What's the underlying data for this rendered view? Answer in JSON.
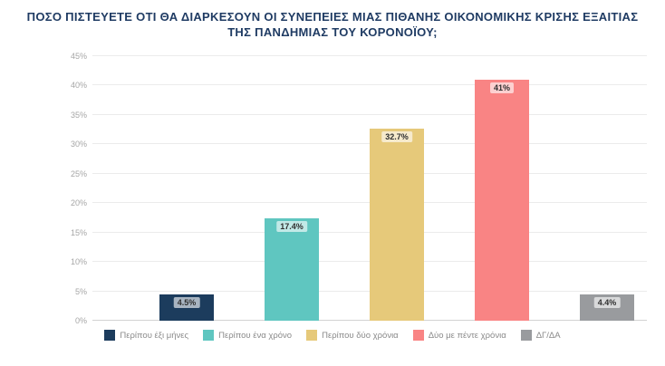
{
  "chart_data": {
    "type": "bar",
    "title": "ΠΟΣΟ ΠΙΣΤΕΥΕΤΕ ΟΤΙ ΘΑ ΔΙΑΡΚΕΣΟΥΝ ΟΙ ΣΥΝΕΠΕΙΕΣ ΜΙΑΣ ΠΙΘΑΝΗΣ ΟΙΚΟΝΟΜΙΚΗΣ ΚΡΙΣΗΣ ΕΞΑΙΤΙΑΣ ΤΗΣ ΠΑΝΔΗΜΙΑΣ ΤΟΥ ΚΟΡΟΝΟΪΟΥ;",
    "title_lines": [
      "ΠΟΣΟ ΠΙΣΤΕΥΕΤΕ ΟΤΙ ΘΑ ΔΙΑΡΚΕΣΟΥΝ ΟΙ ΣΥΝΕΠΕΙΕΣ ΜΙΑΣ ΠΙΘΑΝΗΣ ΟΙΚΟΝΟΜΙΚΗΣ ΚΡΙΣΗΣ ΕΞΑΙΤΙΑΣ",
      "ΤΗΣ ΠΑΝΔΗΜΙΑΣ ΤΟΥ ΚΟΡΟΝΟΪΟΥ;"
    ],
    "categories": [
      "Περίπου έξι μήνες",
      "Περίπου ένα χρόνο",
      "Περίπου δύο χρόνια",
      "Δύο με πέντε χρόνια",
      "ΔΓ/ΔΑ"
    ],
    "values": [
      4.5,
      17.4,
      32.7,
      41,
      4.4
    ],
    "value_labels": [
      "4.5%",
      "17.4%",
      "32.7%",
      "41%",
      "4.4%"
    ],
    "colors": [
      "#1c3c5d",
      "#5fc6c0",
      "#e6c97a",
      "#f98484",
      "#999b9e"
    ],
    "xlabel": "",
    "ylabel": "",
    "ylim": [
      0,
      45
    ],
    "ytick_values": [
      0,
      5,
      10,
      15,
      20,
      25,
      30,
      35,
      40,
      45
    ],
    "ytick_labels": [
      "0%",
      "5%",
      "10%",
      "15%",
      "20%",
      "25%",
      "30%",
      "35%",
      "40%",
      "45%"
    ],
    "grid": true,
    "legend_position": "bottom",
    "title_color": "#1f3b63"
  }
}
